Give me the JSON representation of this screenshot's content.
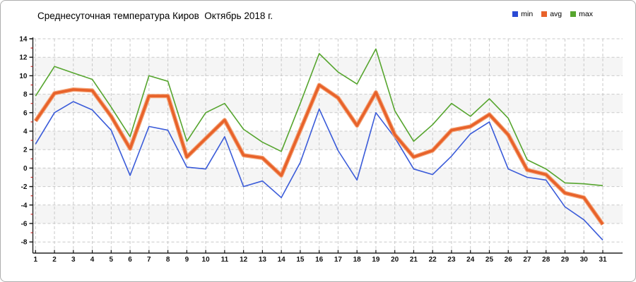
{
  "title": "Среднесуточная температура Киров  Октябрь 2018 г.",
  "legend": [
    {
      "label": "min",
      "color": "#2a4ad4"
    },
    {
      "label": "avg",
      "color": "#e8622a"
    },
    {
      "label": "max",
      "color": "#56a52e"
    }
  ],
  "chart_data": {
    "type": "line",
    "title": "Среднесуточная температура Киров  Октябрь 2018 г.",
    "xlabel": "",
    "ylabel": "",
    "x": [
      1,
      2,
      3,
      4,
      5,
      6,
      7,
      8,
      9,
      10,
      11,
      12,
      13,
      14,
      15,
      16,
      17,
      18,
      19,
      20,
      21,
      22,
      23,
      24,
      25,
      26,
      27,
      28,
      29,
      30,
      31
    ],
    "series": [
      {
        "name": "min",
        "color": "#3a5bd9",
        "width": 1.6,
        "values": [
          2.6,
          6.0,
          7.2,
          6.3,
          4.1,
          -0.8,
          4.5,
          4.1,
          0.1,
          -0.1,
          3.4,
          -2.0,
          -1.4,
          -3.2,
          0.6,
          6.4,
          1.9,
          -1.3,
          6.0,
          3.3,
          -0.1,
          -0.7,
          1.3,
          3.7,
          5.0,
          -0.1,
          -1.0,
          -1.3,
          -4.2,
          -5.6,
          -7.8
        ]
      },
      {
        "name": "avg",
        "color": "#e8622a",
        "width": 3.6,
        "values": [
          5.1,
          8.1,
          8.5,
          8.4,
          5.6,
          2.1,
          7.8,
          7.8,
          1.2,
          3.2,
          5.2,
          1.4,
          1.1,
          -0.8,
          4.1,
          9.0,
          7.6,
          4.6,
          8.2,
          3.6,
          1.2,
          1.9,
          4.1,
          4.5,
          5.8,
          3.6,
          -0.2,
          -0.7,
          -2.7,
          -3.2,
          -6.1
        ]
      },
      {
        "name": "max",
        "color": "#56a52e",
        "width": 1.6,
        "values": [
          7.8,
          11.0,
          10.3,
          9.6,
          6.6,
          3.4,
          10.0,
          9.4,
          2.9,
          6.0,
          7.0,
          4.2,
          2.8,
          1.8,
          7.0,
          12.4,
          10.4,
          9.1,
          12.9,
          6.2,
          2.9,
          4.7,
          7.0,
          5.6,
          7.5,
          5.4,
          0.9,
          -0.1,
          -1.6,
          -1.7,
          -1.9
        ]
      }
    ],
    "ylim": [
      -8,
      14
    ],
    "ytick_major_step": 2,
    "ytick_minor_step": 1,
    "grid": "dashed",
    "legend_position": "top-right"
  },
  "axis_style": {
    "minor_tick_color": "#cc2b2b",
    "major_tick_color": "#111111",
    "grid_color": "#c9c9c9",
    "band_color": "#f5f5f5",
    "axis_color": "#222222",
    "avg_halo_color": "#f3a377"
  }
}
